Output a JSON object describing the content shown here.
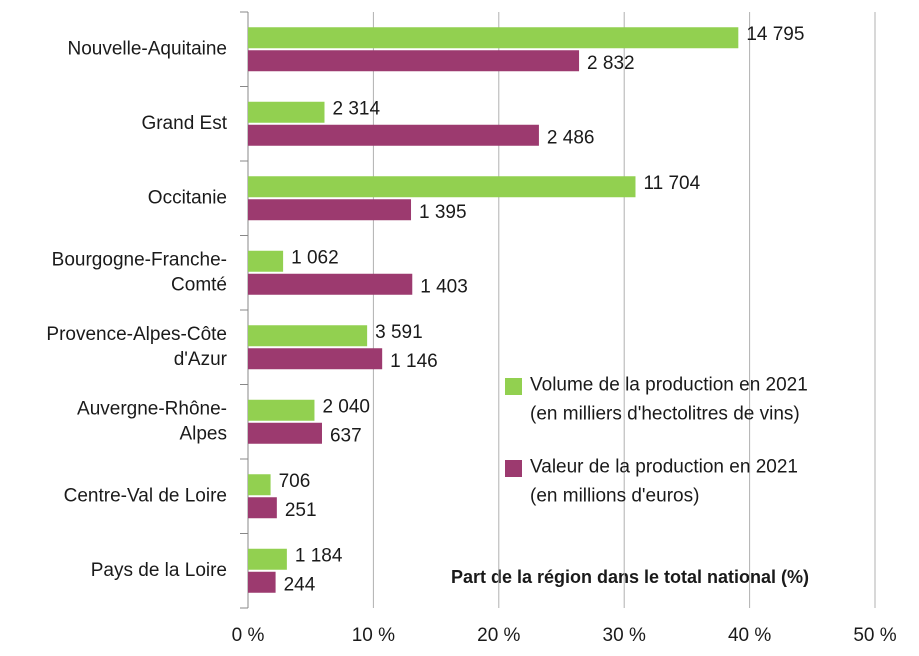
{
  "chart_data": {
    "type": "hbar",
    "categories": [
      "Nouvelle-Aquitaine",
      "Grand Est",
      "Occitanie",
      "Bourgogne-Franche-\nComté",
      "Provence-Alpes-Côte\nd'Azur",
      "Auvergne-Rhône-\nAlpes",
      "Centre-Val de Loire",
      "Pays de la Loire"
    ],
    "series": [
      {
        "name": "Volume de la production en 2021\n(en milliers d'hectolitres de vins)",
        "color": "#92d050",
        "values": [
          39.1,
          6.1,
          30.9,
          2.8,
          9.5,
          5.3,
          1.8,
          3.1
        ],
        "labels": [
          "14 795",
          "2 314",
          "11 704",
          "1 062",
          "3 591",
          "2 040",
          "706",
          "1 184"
        ]
      },
      {
        "name": "Valeur de la production en 2021\n(en millions d'euros)",
        "color": "#9c3a6f",
        "values": [
          26.4,
          23.2,
          13.0,
          13.1,
          10.7,
          5.9,
          2.3,
          2.2
        ],
        "labels": [
          "2 832",
          "2 486",
          "1 395",
          "1 403",
          "1 146",
          "637",
          "251",
          "244"
        ]
      }
    ],
    "xlabel": "Part de la région dans le total national (%)",
    "xlim": [
      0,
      50
    ],
    "xticks": [
      {
        "value": 0,
        "label": "0 %"
      },
      {
        "value": 10,
        "label": "10 %"
      },
      {
        "value": 20,
        "label": "20 %"
      },
      {
        "value": 30,
        "label": "30 %"
      },
      {
        "value": 40,
        "label": "40 %"
      },
      {
        "value": 50,
        "label": "50 %"
      }
    ],
    "grid": true,
    "legend": "lower right"
  }
}
